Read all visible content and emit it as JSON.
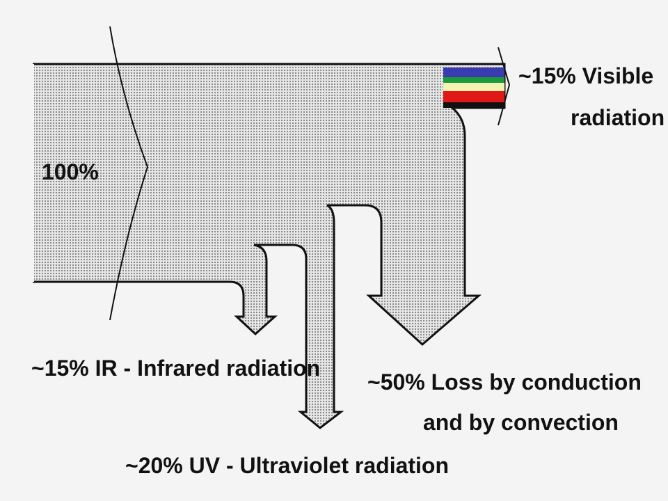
{
  "labels": {
    "source": "100%",
    "visible": [
      "~15% Visible",
      "radiation"
    ],
    "infrared": "~15% IR - Infrared radiation",
    "ultraviolet": "~20% UV - Ultraviolet radiation",
    "conduction": [
      "~50% Loss by conduction",
      "and by convection"
    ]
  }
}
